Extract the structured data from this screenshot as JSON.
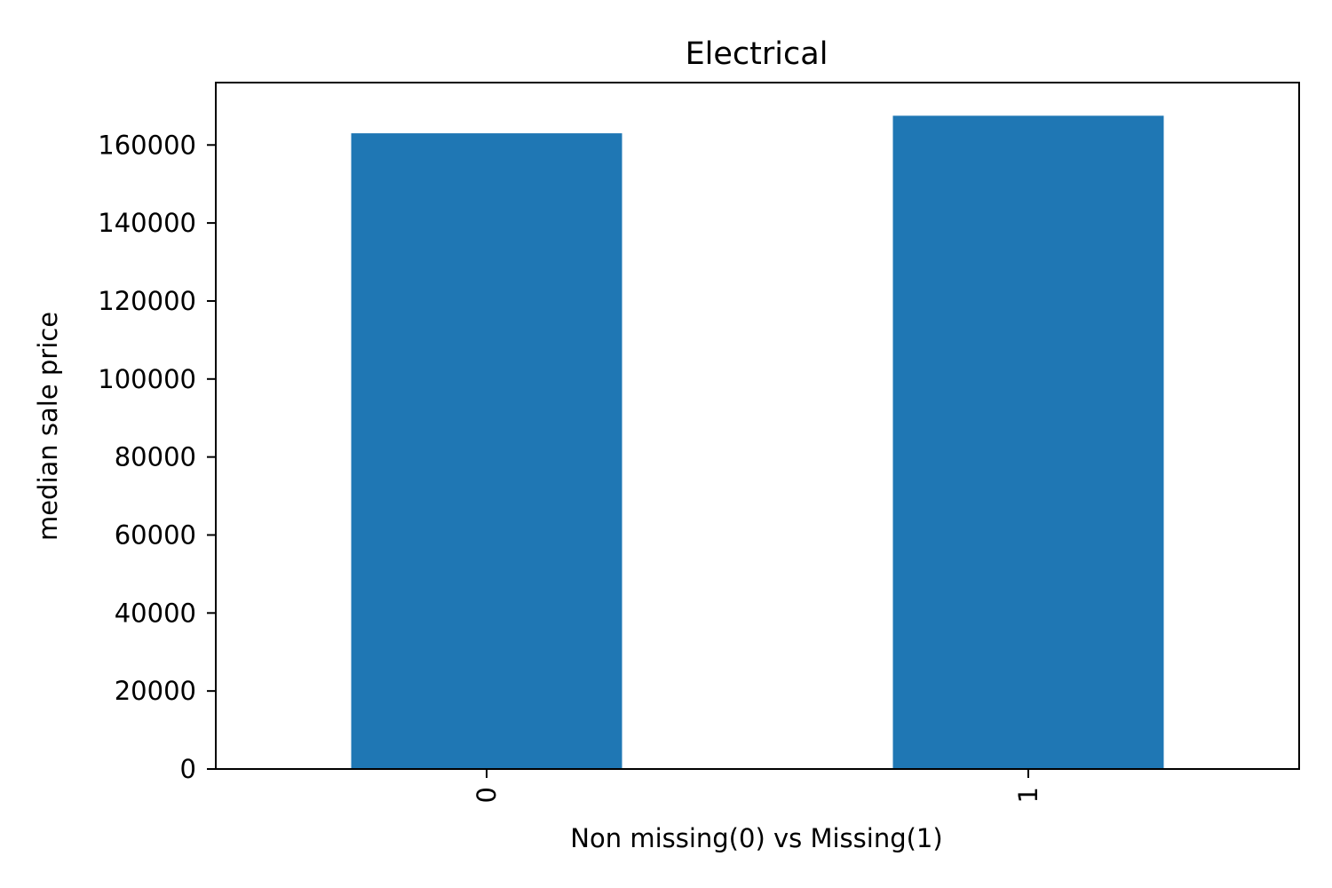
{
  "chart_data": {
    "type": "bar",
    "title": "Electrical",
    "xlabel": "Non missing(0) vs Missing(1)",
    "ylabel": "median sale price",
    "categories": [
      "0",
      "1"
    ],
    "values": [
      163000,
      167500
    ],
    "ylim": [
      0,
      176000
    ],
    "yticks": [
      0,
      20000,
      40000,
      60000,
      80000,
      100000,
      120000,
      140000,
      160000
    ],
    "bar_color": "#1f77b4",
    "grid": false,
    "legend": "none"
  }
}
